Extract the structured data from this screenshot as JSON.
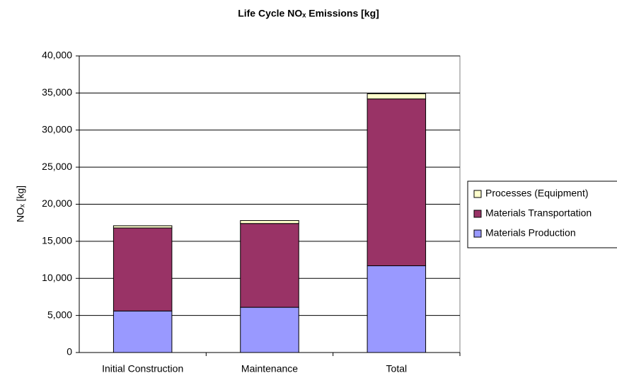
{
  "chart_data": {
    "type": "stacked_bar",
    "title": "Life Cycle NOₓ Emissions [kg]",
    "y_label": "NOₓ [kg]",
    "categories": [
      "Initial Construction",
      "Maintenance",
      "Total"
    ],
    "series": [
      {
        "name": "Materials Production",
        "color": "#9999ff",
        "values": [
          5600,
          6100,
          11700
        ]
      },
      {
        "name": "Materials Transportation",
        "color": "#993366",
        "values": [
          11200,
          11300,
          22500
        ]
      },
      {
        "name": "Processes (Equipment)",
        "color": "#ffffcc",
        "values": [
          300,
          400,
          700
        ]
      }
    ],
    "ylim": [
      0,
      40000
    ],
    "yticks": [
      0,
      {
        "value": 5000,
        "label": "5,000"
      },
      {
        "value": 10000,
        "label": "10,000"
      },
      {
        "value": 15000,
        "label": "15,000"
      },
      {
        "value": 20000,
        "label": "20,000"
      },
      {
        "value": 25000,
        "label": "25,000"
      },
      {
        "value": 30000,
        "label": "30,000"
      },
      {
        "value": 35000,
        "label": "35,000"
      },
      {
        "value": 40000,
        "label": "40,000"
      }
    ],
    "grid": true,
    "legend": "right"
  }
}
